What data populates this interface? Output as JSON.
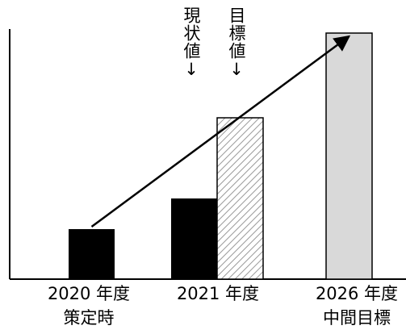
{
  "chart_data": {
    "type": "bar",
    "categories": [
      {
        "line1": "2020 年度",
        "line2": "策定時"
      },
      {
        "line1": "2021 年度",
        "line2": ""
      },
      {
        "line1": "2026 年度",
        "line2": "中間目標"
      }
    ],
    "series": [
      {
        "key": "actual",
        "values": [
          62,
          100,
          null
        ]
      },
      {
        "key": "target",
        "values": [
          null,
          200,
          305
        ]
      }
    ],
    "annotations": {
      "actual_label": "現状値↓",
      "target_label": "目標値↓"
    },
    "arrow": {
      "from": {
        "category": 0,
        "value": 65
      },
      "to": {
        "category": 2,
        "value": 305
      }
    },
    "yaxis_ticks": false,
    "colors": {
      "actual": "#000000",
      "target_hatch": "#9a9a9a",
      "target_solid": "#d9d9d9",
      "axis": "#000000"
    }
  }
}
